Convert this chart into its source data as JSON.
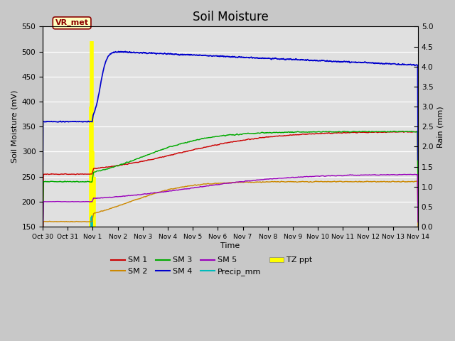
{
  "title": "Soil Moisture",
  "ylabel_left": "Soil Moisture (mV)",
  "ylabel_right": "Rain (mm)",
  "xlabel": "Time",
  "ylim_left": [
    150,
    550
  ],
  "ylim_right": [
    0.0,
    5.0
  ],
  "yticks_left": [
    150,
    200,
    250,
    300,
    350,
    400,
    450,
    500,
    550
  ],
  "yticks_right": [
    0.0,
    0.5,
    1.0,
    1.5,
    2.0,
    2.5,
    3.0,
    3.5,
    4.0,
    4.5,
    5.0
  ],
  "fig_bg_color": "#c8c8c8",
  "axes_bg_color": "#e0e0e0",
  "annotation_text": "VR_met",
  "annotation_bg": "#ffffc0",
  "annotation_border": "#8b0000",
  "sm1_color": "#cc0000",
  "sm2_color": "#cc8800",
  "sm3_color": "#00aa00",
  "sm4_color": "#0000cc",
  "sm5_color": "#9900bb",
  "precip_color": "#00bbbb",
  "tz_color": "#ffff00",
  "legend_fontsize": 8,
  "title_fontsize": 12,
  "xtick_labels": [
    "Oct 30",
    "Oct 31",
    "Nov 1",
    "Nov 2",
    "Nov 3",
    "Nov 4",
    "Nov 5",
    "Nov 6",
    "Nov 7",
    "Nov 8",
    "Nov 9",
    "Nov 10",
    "Nov 11",
    "Nov 12",
    "Nov 13",
    "Nov 14"
  ]
}
